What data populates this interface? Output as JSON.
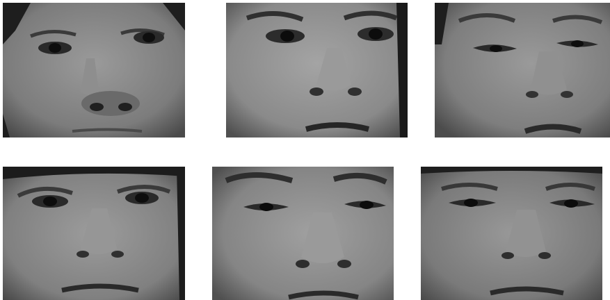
{
  "image": {
    "description_kind": "grid of grayscale cropped face photographs",
    "rows": 2,
    "columns": 3,
    "faces": [
      {
        "row": 1,
        "col": 1,
        "tone": "#7c7c7c",
        "shadow": "#2a2a2a"
      },
      {
        "row": 1,
        "col": 2,
        "tone": "#8a8a8a",
        "shadow": "#2e2e2e"
      },
      {
        "row": 1,
        "col": 3,
        "tone": "#7e7e7e",
        "shadow": "#303030"
      },
      {
        "row": 2,
        "col": 1,
        "tone": "#808080",
        "shadow": "#262626"
      },
      {
        "row": 2,
        "col": 2,
        "tone": "#858585",
        "shadow": "#2c2c2c"
      },
      {
        "row": 2,
        "col": 3,
        "tone": "#7a7a7a",
        "shadow": "#2d2d2d"
      }
    ]
  }
}
